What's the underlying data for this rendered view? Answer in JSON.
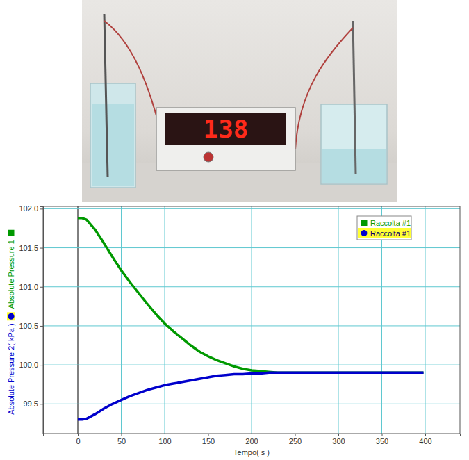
{
  "photo": {
    "display": "138"
  },
  "chart_data": {
    "type": "line",
    "x_label": "Tempo( s )",
    "x": [
      0,
      5,
      10,
      20,
      30,
      40,
      50,
      60,
      70,
      80,
      90,
      100,
      110,
      120,
      130,
      140,
      150,
      160,
      170,
      180,
      190,
      200,
      210,
      220,
      230,
      240,
      250,
      260,
      270,
      280,
      290,
      300,
      310,
      320,
      330,
      340,
      350,
      360,
      370,
      380,
      390,
      398
    ],
    "series": [
      {
        "name": "Raccolta #1",
        "axis_label": "Absolute Pressure 1",
        "color": "#009900",
        "marker": "square",
        "values": [
          101.88,
          101.88,
          101.86,
          101.73,
          101.56,
          101.38,
          101.21,
          101.06,
          100.92,
          100.78,
          100.65,
          100.53,
          100.43,
          100.34,
          100.25,
          100.17,
          100.11,
          100.06,
          100.02,
          99.98,
          99.95,
          99.93,
          99.92,
          99.91,
          99.9,
          99.9,
          99.9,
          99.9,
          99.9,
          99.9,
          99.9,
          99.9,
          99.9,
          99.9,
          99.9,
          99.9,
          99.9,
          99.9,
          99.9,
          99.9,
          99.9,
          99.9
        ]
      },
      {
        "name": "Raccolta #1",
        "axis_label": "Absolute Pressure 2( kPa )",
        "color": "#0000cc",
        "marker": "circle",
        "values": [
          99.3,
          99.3,
          99.31,
          99.37,
          99.44,
          99.5,
          99.55,
          99.6,
          99.64,
          99.68,
          99.71,
          99.74,
          99.76,
          99.78,
          99.8,
          99.82,
          99.84,
          99.86,
          99.87,
          99.88,
          99.88,
          99.89,
          99.89,
          99.9,
          99.9,
          99.9,
          99.9,
          99.9,
          99.9,
          99.9,
          99.9,
          99.9,
          99.9,
          99.9,
          99.9,
          99.9,
          99.9,
          99.9,
          99.9,
          99.9,
          99.9,
          99.9
        ]
      }
    ],
    "xlim": [
      -40,
      440
    ],
    "xticks": [
      0,
      50,
      100,
      150,
      200,
      250,
      300,
      350,
      400
    ],
    "ylim": [
      99.12,
      102.03
    ],
    "yticks": [
      99.5,
      {
        "value": 100,
        "label": "100.0"
      },
      100.5,
      {
        "value": 101,
        "label": "101.0"
      },
      101.5,
      {
        "value": 102,
        "label": "102.0"
      }
    ],
    "grid": true,
    "legend": "top-right"
  }
}
